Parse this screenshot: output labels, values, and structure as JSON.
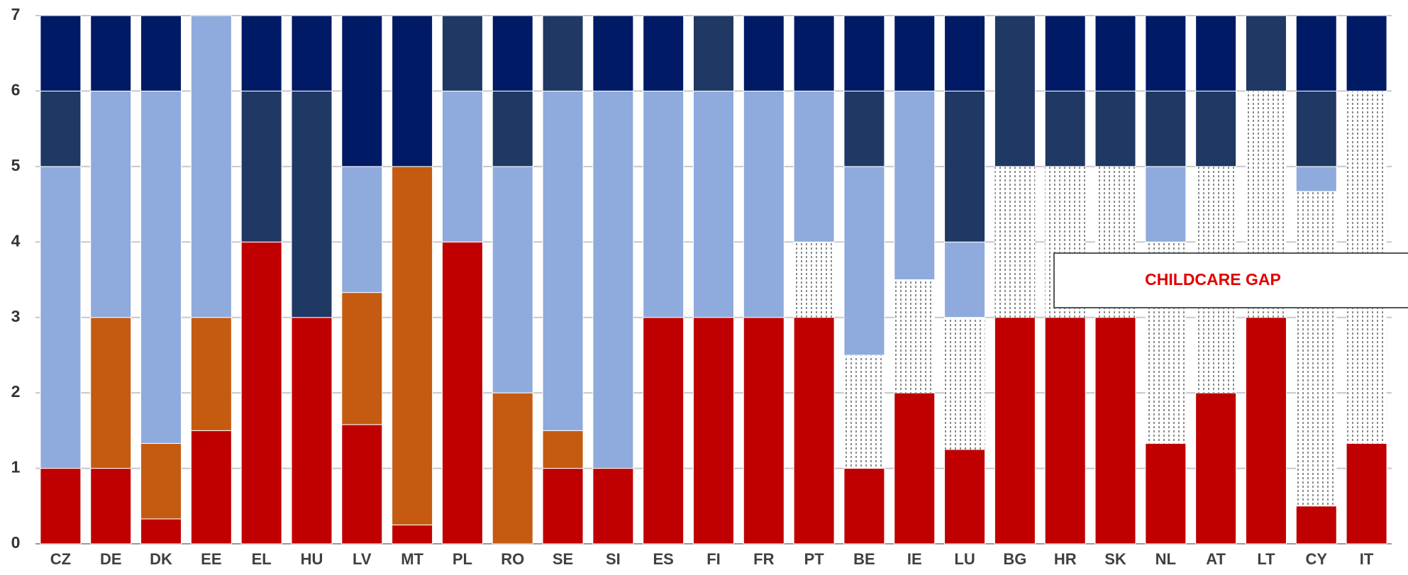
{
  "chart_data": {
    "type": "bar",
    "stacked": true,
    "ylim": [
      0,
      7
    ],
    "yticks": [
      0,
      1,
      2,
      3,
      4,
      5,
      6,
      7
    ],
    "grid": "horizontal",
    "categories": [
      "CZ",
      "DE",
      "DK",
      "EE",
      "EL",
      "HU",
      "LV",
      "MT",
      "PL",
      "RO",
      "SE",
      "SI",
      "ES",
      "FI",
      "FR",
      "PT",
      "BE",
      "IE",
      "LU",
      "BG",
      "HR",
      "SK",
      "NL",
      "AT",
      "LT",
      "CY",
      "IT"
    ],
    "segment_colors": {
      "red": "#c00000",
      "orange": "#c55a11",
      "light_blue": "#8faadc",
      "mid_blue": "#1f3864",
      "dark_blue": "#001a66",
      "gap": "#ffffff"
    },
    "bars": [
      {
        "cat": "CZ",
        "segments": [
          {
            "color": "red",
            "from": 0,
            "to": 1
          },
          {
            "color": "light_blue",
            "from": 1,
            "to": 5
          },
          {
            "color": "mid_blue",
            "from": 5,
            "to": 6
          },
          {
            "color": "dark_blue",
            "from": 6,
            "to": 7
          }
        ]
      },
      {
        "cat": "DE",
        "segments": [
          {
            "color": "red",
            "from": 0,
            "to": 1
          },
          {
            "color": "orange",
            "from": 1,
            "to": 3
          },
          {
            "color": "light_blue",
            "from": 3,
            "to": 6
          },
          {
            "color": "dark_blue",
            "from": 6,
            "to": 7
          }
        ]
      },
      {
        "cat": "DK",
        "segments": [
          {
            "color": "red",
            "from": 0,
            "to": 0.33
          },
          {
            "color": "orange",
            "from": 0.33,
            "to": 1.33
          },
          {
            "color": "light_blue",
            "from": 1.33,
            "to": 6
          },
          {
            "color": "dark_blue",
            "from": 6,
            "to": 7
          }
        ]
      },
      {
        "cat": "EE",
        "segments": [
          {
            "color": "red",
            "from": 0,
            "to": 1.5
          },
          {
            "color": "orange",
            "from": 1.5,
            "to": 3
          },
          {
            "color": "light_blue",
            "from": 3,
            "to": 7
          }
        ]
      },
      {
        "cat": "EL",
        "segments": [
          {
            "color": "red",
            "from": 0,
            "to": 4
          },
          {
            "color": "mid_blue",
            "from": 4,
            "to": 6
          },
          {
            "color": "dark_blue",
            "from": 6,
            "to": 7
          }
        ]
      },
      {
        "cat": "HU",
        "segments": [
          {
            "color": "red",
            "from": 0,
            "to": 3
          },
          {
            "color": "mid_blue",
            "from": 3,
            "to": 6
          },
          {
            "color": "dark_blue",
            "from": 6,
            "to": 7
          }
        ]
      },
      {
        "cat": "LV",
        "segments": [
          {
            "color": "red",
            "from": 0,
            "to": 1.58
          },
          {
            "color": "orange",
            "from": 1.58,
            "to": 3.33
          },
          {
            "color": "light_blue",
            "from": 3.33,
            "to": 5
          },
          {
            "color": "dark_blue",
            "from": 5,
            "to": 7
          }
        ]
      },
      {
        "cat": "MT",
        "segments": [
          {
            "color": "red",
            "from": 0,
            "to": 0.25
          },
          {
            "color": "orange",
            "from": 0.25,
            "to": 5
          },
          {
            "color": "dark_blue",
            "from": 5,
            "to": 7
          }
        ]
      },
      {
        "cat": "PL",
        "segments": [
          {
            "color": "red",
            "from": 0,
            "to": 4
          },
          {
            "color": "light_blue",
            "from": 4,
            "to": 6
          },
          {
            "color": "mid_blue",
            "from": 6,
            "to": 7
          }
        ]
      },
      {
        "cat": "RO",
        "segments": [
          {
            "color": "orange",
            "from": 0,
            "to": 2
          },
          {
            "color": "light_blue",
            "from": 2,
            "to": 5
          },
          {
            "color": "mid_blue",
            "from": 5,
            "to": 6
          },
          {
            "color": "dark_blue",
            "from": 6,
            "to": 7
          }
        ]
      },
      {
        "cat": "SE",
        "segments": [
          {
            "color": "red",
            "from": 0,
            "to": 1
          },
          {
            "color": "orange",
            "from": 1,
            "to": 1.5
          },
          {
            "color": "light_blue",
            "from": 1.5,
            "to": 6
          },
          {
            "color": "mid_blue",
            "from": 6,
            "to": 7
          }
        ]
      },
      {
        "cat": "SI",
        "segments": [
          {
            "color": "red",
            "from": 0,
            "to": 1
          },
          {
            "color": "light_blue",
            "from": 1,
            "to": 6
          },
          {
            "color": "dark_blue",
            "from": 6,
            "to": 7
          }
        ]
      },
      {
        "cat": "ES",
        "segments": [
          {
            "color": "red",
            "from": 0,
            "to": 3
          },
          {
            "color": "light_blue",
            "from": 3,
            "to": 6
          },
          {
            "color": "dark_blue",
            "from": 6,
            "to": 7
          }
        ]
      },
      {
        "cat": "FI",
        "segments": [
          {
            "color": "red",
            "from": 0,
            "to": 3
          },
          {
            "color": "light_blue",
            "from": 3,
            "to": 6
          },
          {
            "color": "mid_blue",
            "from": 6,
            "to": 7
          }
        ]
      },
      {
        "cat": "FR",
        "segments": [
          {
            "color": "red",
            "from": 0,
            "to": 3
          },
          {
            "color": "light_blue",
            "from": 3,
            "to": 6
          },
          {
            "color": "dark_blue",
            "from": 6,
            "to": 7
          }
        ]
      },
      {
        "cat": "PT",
        "segments": [
          {
            "color": "red",
            "from": 0,
            "to": 3
          },
          {
            "color": "gap",
            "from": 3,
            "to": 4
          },
          {
            "color": "light_blue",
            "from": 4,
            "to": 6
          },
          {
            "color": "dark_blue",
            "from": 6,
            "to": 7
          }
        ]
      },
      {
        "cat": "BE",
        "segments": [
          {
            "color": "red",
            "from": 0,
            "to": 1
          },
          {
            "color": "gap",
            "from": 1,
            "to": 2.5
          },
          {
            "color": "light_blue",
            "from": 2.5,
            "to": 5
          },
          {
            "color": "mid_blue",
            "from": 5,
            "to": 6
          },
          {
            "color": "dark_blue",
            "from": 6,
            "to": 7
          }
        ]
      },
      {
        "cat": "IE",
        "segments": [
          {
            "color": "red",
            "from": 0,
            "to": 2
          },
          {
            "color": "gap",
            "from": 2,
            "to": 3.5
          },
          {
            "color": "light_blue",
            "from": 3.5,
            "to": 6
          },
          {
            "color": "dark_blue",
            "from": 6,
            "to": 7
          }
        ]
      },
      {
        "cat": "LU",
        "segments": [
          {
            "color": "red",
            "from": 0,
            "to": 1.25
          },
          {
            "color": "gap",
            "from": 1.25,
            "to": 3
          },
          {
            "color": "light_blue",
            "from": 3,
            "to": 4
          },
          {
            "color": "mid_blue",
            "from": 4,
            "to": 6
          },
          {
            "color": "dark_blue",
            "from": 6,
            "to": 7
          }
        ]
      },
      {
        "cat": "BG",
        "segments": [
          {
            "color": "red",
            "from": 0,
            "to": 3
          },
          {
            "color": "gap",
            "from": 3,
            "to": 5
          },
          {
            "color": "mid_blue",
            "from": 5,
            "to": 7
          }
        ]
      },
      {
        "cat": "HR",
        "segments": [
          {
            "color": "red",
            "from": 0,
            "to": 3
          },
          {
            "color": "gap",
            "from": 3,
            "to": 5
          },
          {
            "color": "mid_blue",
            "from": 5,
            "to": 6
          },
          {
            "color": "dark_blue",
            "from": 6,
            "to": 7
          }
        ]
      },
      {
        "cat": "SK",
        "segments": [
          {
            "color": "red",
            "from": 0,
            "to": 3
          },
          {
            "color": "gap",
            "from": 3,
            "to": 5
          },
          {
            "color": "mid_blue",
            "from": 5,
            "to": 6
          },
          {
            "color": "dark_blue",
            "from": 6,
            "to": 7
          }
        ]
      },
      {
        "cat": "NL",
        "segments": [
          {
            "color": "red",
            "from": 0,
            "to": 1.33
          },
          {
            "color": "gap",
            "from": 1.33,
            "to": 4
          },
          {
            "color": "light_blue",
            "from": 4,
            "to": 5
          },
          {
            "color": "mid_blue",
            "from": 5,
            "to": 6
          },
          {
            "color": "dark_blue",
            "from": 6,
            "to": 7
          }
        ]
      },
      {
        "cat": "AT",
        "segments": [
          {
            "color": "red",
            "from": 0,
            "to": 2
          },
          {
            "color": "gap",
            "from": 2,
            "to": 5
          },
          {
            "color": "mid_blue",
            "from": 5,
            "to": 6
          },
          {
            "color": "dark_blue",
            "from": 6,
            "to": 7
          }
        ]
      },
      {
        "cat": "LT",
        "segments": [
          {
            "color": "red",
            "from": 0,
            "to": 3
          },
          {
            "color": "gap",
            "from": 3,
            "to": 6
          },
          {
            "color": "mid_blue",
            "from": 6,
            "to": 7
          }
        ]
      },
      {
        "cat": "CY",
        "segments": [
          {
            "color": "red",
            "from": 0,
            "to": 0.5
          },
          {
            "color": "gap",
            "from": 0.5,
            "to": 4.67
          },
          {
            "color": "light_blue",
            "from": 4.67,
            "to": 5
          },
          {
            "color": "mid_blue",
            "from": 5,
            "to": 6
          },
          {
            "color": "dark_blue",
            "from": 6,
            "to": 7
          }
        ]
      },
      {
        "cat": "IT",
        "segments": [
          {
            "color": "red",
            "from": 0,
            "to": 1.33
          },
          {
            "color": "gap",
            "from": 1.33,
            "to": 6
          },
          {
            "color": "dark_blue",
            "from": 6,
            "to": 7
          }
        ]
      }
    ],
    "annotation": {
      "text": "CHILDCARE GAP",
      "color": "#e00000"
    }
  }
}
